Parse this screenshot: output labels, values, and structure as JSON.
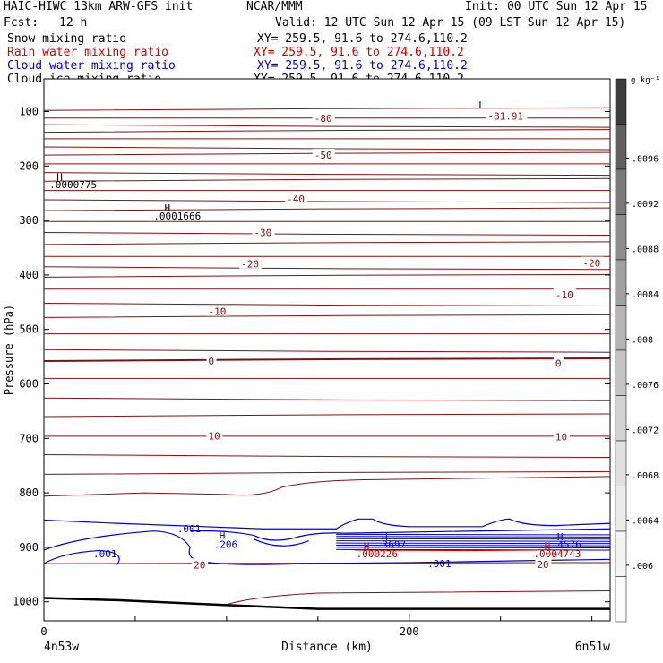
{
  "header": {
    "title_left": "HAIC-HIWC 13km ARW-GFS init",
    "org": "NCAR/MMM",
    "init": "Init: 00 UTC Sun 12 Apr 15",
    "fcst": "Fcst:",
    "fcst_hours": "12 h",
    "valid": "Valid: 12 UTC Sun 12 Apr 15 (09 LST Sun 12 Apr 15)"
  },
  "legend": [
    {
      "name": "Snow mixing ratio",
      "xy": "XY= 259.5, 91.6 to 274.6,110.2",
      "color": "#000000"
    },
    {
      "name": "Rain water mixing ratio",
      "xy": "XY= 259.5, 91.6 to 274.6,110.2",
      "color": "#d00000"
    },
    {
      "name": "Cloud water mixing ratio",
      "xy": "XY= 259.5, 91.6 to 274.6,110.2",
      "color": "#0000c8"
    },
    {
      "name": "Cloud ice mixing ratio",
      "xy": "XY= 259.5, 91.6 to 274.6,110.2",
      "color": "#000000"
    }
  ],
  "chart_data": {
    "type": "contour",
    "xlabel": "Distance (km)",
    "ylabel": "Pressure (hPa)",
    "xlim": [
      0,
      310
    ],
    "ylim": [
      1035,
      40
    ],
    "x_ticks": [
      0,
      200
    ],
    "x_minor_ticks": [
      50,
      100,
      150,
      250,
      300
    ],
    "y_ticks": [
      100,
      200,
      300,
      400,
      500,
      600,
      700,
      800,
      900,
      1000
    ],
    "x_endpoints": {
      "left": "4n53w",
      "right": "6n51w"
    },
    "colorbar": {
      "unit": "g kg⁻¹",
      "labels": [
        ".0096",
        ".0092",
        ".0088",
        ".0084",
        ".008",
        ".0076",
        ".0072",
        ".0068",
        ".0064",
        ".006"
      ],
      "shades": [
        "#3c3c3c",
        "#606060",
        "#787878",
        "#8c8c8c",
        "#a0a0a0",
        "#b4b4b4",
        "#c4c4c4",
        "#d2d2d2",
        "#e0e0e0",
        "#ececec",
        "#f4f4f4",
        "#fafafa"
      ]
    },
    "isotherm_labels": [
      {
        "text": "-80",
        "x": 148,
        "p": 112
      },
      {
        "text": "-81.91",
        "x": 243,
        "p": 108
      },
      {
        "text": "-50",
        "x": 148,
        "p": 180
      },
      {
        "text": "-40",
        "x": 133,
        "p": 260
      },
      {
        "text": "-30",
        "x": 115,
        "p": 322
      },
      {
        "text": "-20",
        "x": 108,
        "p": 380
      },
      {
        "text": "-20",
        "x": 295,
        "p": 378
      },
      {
        "text": "-10",
        "x": 90,
        "p": 467
      },
      {
        "text": "-10",
        "x": 280,
        "p": 436
      },
      {
        "text": "0",
        "x": 90,
        "p": 558
      },
      {
        "text": "0",
        "x": 280,
        "p": 562
      },
      {
        "text": "10",
        "x": 90,
        "p": 695
      },
      {
        "text": "10",
        "x": 280,
        "p": 697
      },
      {
        "text": "20",
        "x": 82,
        "p": 932
      },
      {
        "text": "20",
        "x": 270,
        "p": 931
      }
    ],
    "extrema_labels": [
      {
        "text": "L",
        "x": 238,
        "p": 88,
        "color": "#000000"
      },
      {
        "text": "H",
        "x": 7,
        "p": 220,
        "color": "#000000"
      },
      {
        "text": ".0000775",
        "x": 3,
        "p": 234,
        "color": "#000000"
      },
      {
        "text": "H",
        "x": 66,
        "p": 277,
        "color": "#000000"
      },
      {
        "text": ".0001666",
        "x": 60,
        "p": 292,
        "color": "#000000"
      },
      {
        "text": ".001",
        "x": 73,
        "p": 866,
        "color": "#0000c8"
      },
      {
        "text": "H",
        "x": 96,
        "p": 878,
        "color": "#0000c8"
      },
      {
        "text": ".206",
        "x": 93,
        "p": 894,
        "color": "#0000c8"
      },
      {
        "text": ".001",
        "x": 27,
        "p": 912,
        "color": "#0000c8"
      },
      {
        "text": "H",
        "x": 185,
        "p": 880,
        "color": "#0000c8"
      },
      {
        "text": ".3697",
        "x": 182,
        "p": 894,
        "color": "#0000c8"
      },
      {
        "text": "H",
        "x": 175,
        "p": 898,
        "color": "#d00000"
      },
      {
        "text": ".000226",
        "x": 171,
        "p": 912,
        "color": "#d00000"
      },
      {
        "text": ".001",
        "x": 210,
        "p": 930,
        "color": "#0000c8"
      },
      {
        "text": "H",
        "x": 281,
        "p": 880,
        "color": "#0000c8"
      },
      {
        "text": ".4576",
        "x": 278,
        "p": 894,
        "color": "#0000c8"
      },
      {
        "text": "H",
        "x": 274,
        "p": 898,
        "color": "#d00000"
      },
      {
        "text": ".0004743",
        "x": 268,
        "p": 912,
        "color": "#d00000"
      }
    ]
  }
}
